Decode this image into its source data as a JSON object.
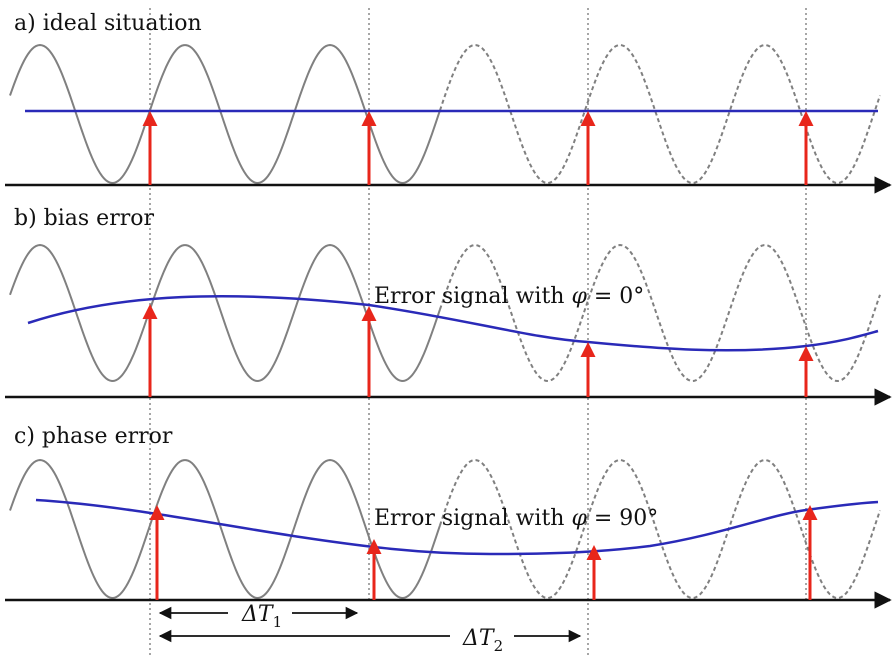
{
  "panels": [
    {
      "id": "a",
      "label": "a) ideal situation",
      "annotation": null
    },
    {
      "id": "b",
      "label": "b) bias error",
      "annotation": {
        "prefix": "Error signal with ",
        "phi": "φ",
        "eq": " = 0°"
      }
    },
    {
      "id": "c",
      "label": "c) phase error",
      "annotation": {
        "prefix": "Error signal with ",
        "phi": "φ",
        "eq": " = 90°"
      }
    }
  ],
  "intervals": [
    {
      "symbol": "ΔT",
      "subscript": "1"
    },
    {
      "symbol": "ΔT",
      "subscript": "2"
    }
  ],
  "colors": {
    "carrier_wave": "#808080",
    "error_signal": "#2a2ab8",
    "sample_arrow": "#e8261b",
    "axis": "#111111",
    "guide_line": "#888888"
  }
}
